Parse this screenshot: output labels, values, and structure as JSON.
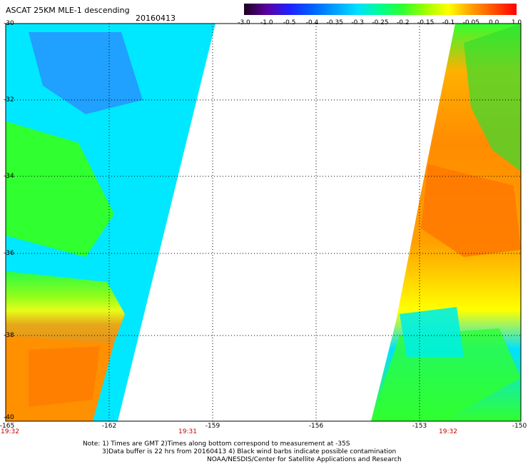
{
  "header": {
    "title": "ASCAT 25KM MLE-1 descending",
    "date": "20160413"
  },
  "colorbar": {
    "labels": [
      "-3.0",
      "-1.0",
      "-0.5",
      "-0.4",
      "-0.35",
      "-0.3",
      "-0.25",
      "-0.2",
      "-0.15",
      "-0.1",
      "-0.05",
      "0.0",
      "1.0"
    ],
    "colors": [
      "#200020",
      "#5a00a0",
      "#2020ff",
      "#0060ff",
      "#00a0ff",
      "#00e0ff",
      "#00ff90",
      "#30ff30",
      "#a0ff00",
      "#ffff00",
      "#ffa000",
      "#ff5000",
      "#ff0000"
    ]
  },
  "map": {
    "lat_labels": [
      "-30",
      "-32",
      "-34",
      "-36",
      "-38",
      "-40"
    ],
    "lon_labels": [
      "-165",
      "-162",
      "-159",
      "-156",
      "-153",
      "-150"
    ],
    "time_labels": [
      "19:32",
      "19:31",
      "19:32"
    ]
  },
  "notes": {
    "line1": "Note: 1) Times are GMT 2)Times along bottom correspond to measurement at -35S",
    "line2": "3)Data buffer is 22 hrs from 20160413 4) Black wind barbs indicate possible contamination",
    "line3": "NOAA/NESDIS/Center for Satellite Applications and Research"
  }
}
